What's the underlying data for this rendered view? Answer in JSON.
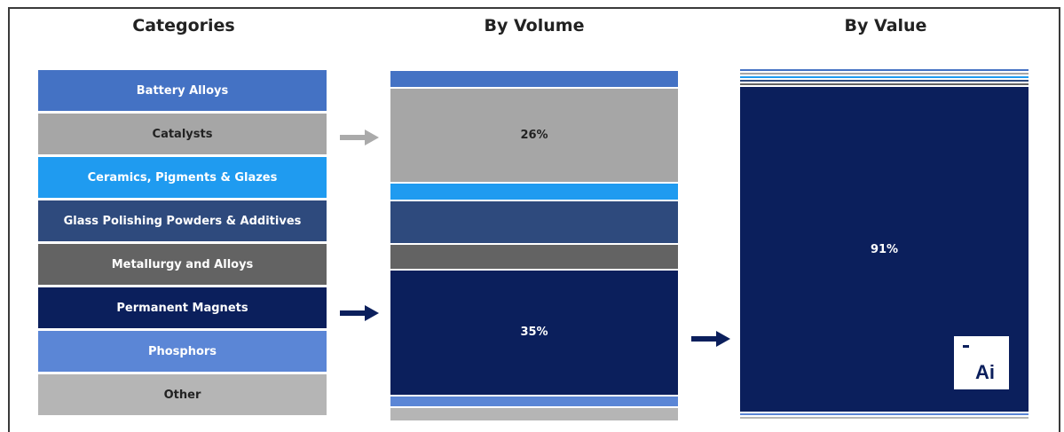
{
  "headings": {
    "categories": "Categories",
    "volume": "By Volume",
    "value": "By Value"
  },
  "colors": {
    "battery_alloys": "#4472c4",
    "catalysts": "#a6a6a6",
    "ceramics": "#1f9bf0",
    "glass_polishing": "#2e4a7d",
    "metallurgy": "#636363",
    "permanent_magnets": "#0b1f5c",
    "phosphors": "#5b86d6",
    "other": "#b5b5b5",
    "arrow_gray": "#aaaaaa",
    "arrow_navy": "#0b1f5c"
  },
  "chart_data": {
    "type": "stacked-bar",
    "categories": [
      {
        "key": "battery_alloys",
        "label": "Battery Alloys",
        "text_color": "#ffffff"
      },
      {
        "key": "catalysts",
        "label": "Catalysts",
        "text_color": "#222222"
      },
      {
        "key": "ceramics",
        "label": "Ceramics, Pigments & Glazes",
        "text_color": "#ffffff"
      },
      {
        "key": "glass_polishing",
        "label": "Glass Polishing Powders & Additives",
        "text_color": "#ffffff"
      },
      {
        "key": "metallurgy",
        "label": "Metallurgy and Alloys",
        "text_color": "#ffffff"
      },
      {
        "key": "permanent_magnets",
        "label": "Permanent Magnets",
        "text_color": "#ffffff"
      },
      {
        "key": "phosphors",
        "label": "Phosphors",
        "text_color": "#ffffff"
      },
      {
        "key": "other",
        "label": "Other",
        "text_color": "#222222"
      }
    ],
    "by_volume": {
      "values": [
        5,
        26,
        5,
        12,
        7,
        35,
        3,
        4
      ],
      "labels": [
        "",
        "26%",
        "",
        "",
        "",
        "35%",
        "",
        ""
      ],
      "label_colors": [
        "",
        "#222222",
        "",
        "",
        "",
        "#ffffff",
        "",
        ""
      ]
    },
    "by_value": {
      "values": [
        1,
        1,
        1,
        1,
        1,
        91,
        1,
        1
      ],
      "labels": [
        "",
        "",
        "",
        "",
        "",
        "91%",
        "",
        ""
      ],
      "label_colors": [
        "",
        "",
        "",
        "",
        "",
        "#ffffff",
        "",
        ""
      ]
    }
  },
  "logo": {
    "text": "Ai",
    "name": "ai-logo"
  }
}
